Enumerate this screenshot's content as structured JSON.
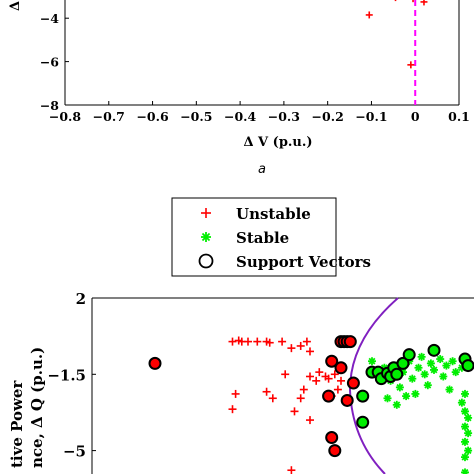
{
  "chart_data": [
    {
      "type": "scatter",
      "xlabel": "Δ V (p.u.)",
      "ylabel_fragment": "Δ",
      "xlim": [
        -0.8,
        0.1
      ],
      "ylim": [
        -8,
        -2
      ],
      "xticks": [
        -0.8,
        -0.7,
        -0.6,
        -0.5,
        -0.4,
        -0.3,
        -0.2,
        -0.1,
        0,
        0.1
      ],
      "xtick_labels": [
        "−0.8",
        "−0.7",
        "−0.6",
        "−0.5",
        "−0.4",
        "−0.3",
        "−0.2",
        "−0.1",
        "0",
        "0.1"
      ],
      "yticks": [
        -4,
        -6,
        -8
      ],
      "ytick_labels": [
        "−4",
        "−6",
        "−8"
      ],
      "series": [
        {
          "marker": "plus",
          "color": "#ff0000",
          "points": [
            [
              -0.105,
              -3.85
            ],
            [
              0.02,
              -3.25
            ],
            [
              -0.01,
              -6.15
            ],
            [
              -0.005,
              -3.1
            ],
            [
              -0.045,
              -3.05
            ]
          ]
        }
      ],
      "boundary": {
        "color": "#ff00ff",
        "style": "dashed",
        "x": 0
      },
      "caption": "a"
    },
    {
      "type": "scatter",
      "ylabel_lines": [
        "tive Power",
        "nce, Δ Q (p.u.)"
      ],
      "yticks": [
        2,
        -1.5,
        -5
      ],
      "ytick_labels": [
        "2",
        "−1.5",
        "−5"
      ],
      "legend": {
        "placement": "top-center",
        "entries": [
          {
            "label": "Unstable",
            "marker": "plus",
            "color": "#ff0000"
          },
          {
            "label": "Stable",
            "marker": "asterisk",
            "color": "#00ee00"
          },
          {
            "label": "Support Vectors",
            "marker": "circle",
            "color": "#000000"
          }
        ]
      },
      "series": [
        {
          "marker": "plus",
          "color": "#ff0000",
          "points": [
            [
              -0.55,
              0.0
            ],
            [
              -0.53,
              0.05
            ],
            [
              -0.52,
              0.0
            ],
            [
              -0.5,
              0.0
            ],
            [
              -0.47,
              0.0
            ],
            [
              -0.44,
              0.0
            ],
            [
              -0.43,
              -0.05
            ],
            [
              -0.39,
              0.0
            ],
            [
              -0.36,
              -0.3
            ],
            [
              -0.33,
              -0.2
            ],
            [
              -0.31,
              0.0
            ],
            [
              -0.3,
              -0.45
            ],
            [
              -0.38,
              -1.5
            ],
            [
              -0.42,
              -2.6
            ],
            [
              -0.44,
              -2.3
            ],
            [
              -0.54,
              -2.4
            ],
            [
              -0.55,
              -3.1
            ],
            [
              -0.35,
              -3.2
            ],
            [
              -0.33,
              -2.6
            ],
            [
              -0.32,
              -2.2
            ],
            [
              -0.3,
              -1.6
            ],
            [
              -0.28,
              -1.8
            ],
            [
              -0.27,
              -1.4
            ],
            [
              -0.25,
              -1.6
            ],
            [
              -0.24,
              -1.7
            ],
            [
              -0.22,
              -1.5
            ],
            [
              -0.2,
              -1.8
            ],
            [
              -0.21,
              -2.2
            ],
            [
              -0.23,
              -2.5
            ],
            [
              -0.3,
              -3.6
            ],
            [
              -0.36,
              -5.9
            ]
          ]
        },
        {
          "marker": "asterisk",
          "color": "#00ee00",
          "points": [
            [
              -0.1,
              -0.9
            ],
            [
              -0.08,
              -1.6
            ],
            [
              -0.06,
              -1.2
            ],
            [
              -0.04,
              -1.8
            ],
            [
              -0.02,
              -1.1
            ],
            [
              -0.01,
              -2.1
            ],
            [
              0.0,
              -1.4
            ],
            [
              0.02,
              -0.9
            ],
            [
              0.03,
              -1.7
            ],
            [
              0.04,
              -2.4
            ],
            [
              0.05,
              -1.2
            ],
            [
              0.06,
              -0.7
            ],
            [
              0.07,
              -1.5
            ],
            [
              0.08,
              -2.0
            ],
            [
              0.09,
              -1.0
            ],
            [
              0.1,
              -1.3
            ],
            [
              0.12,
              -0.8
            ],
            [
              0.13,
              -1.6
            ],
            [
              0.14,
              -1.1
            ],
            [
              0.15,
              -2.2
            ],
            [
              0.16,
              -0.9
            ],
            [
              0.17,
              -1.4
            ],
            [
              -0.05,
              -2.6
            ],
            [
              -0.02,
              -2.9
            ],
            [
              0.01,
              -2.5
            ],
            [
              0.19,
              -1.2
            ],
            [
              0.2,
              -2.4
            ],
            [
              0.2,
              -3.2
            ],
            [
              0.2,
              -3.9
            ],
            [
              0.2,
              -4.6
            ],
            [
              0.2,
              -5.3
            ],
            [
              0.2,
              -6.0
            ],
            [
              0.19,
              -2.8
            ],
            [
              0.21,
              -3.5
            ],
            [
              0.21,
              -4.2
            ],
            [
              0.21,
              -5.0
            ]
          ]
        },
        {
          "marker": "circle",
          "color": "#000000",
          "points": [
            [
              -0.8,
              -1.0
            ],
            [
              -0.2,
              0.0
            ],
            [
              -0.19,
              0.0
            ],
            [
              -0.18,
              0.0
            ],
            [
              -0.17,
              0.0
            ],
            [
              -0.23,
              -0.9
            ],
            [
              -0.24,
              -2.5
            ],
            [
              -0.2,
              -1.2
            ],
            [
              -0.18,
              -2.7
            ],
            [
              -0.23,
              -4.4
            ],
            [
              -0.22,
              -5.0
            ],
            [
              -0.16,
              -1.9
            ],
            [
              -0.1,
              -1.4
            ],
            [
              -0.08,
              -1.4
            ],
            [
              -0.07,
              -1.7
            ],
            [
              -0.05,
              -1.45
            ],
            [
              -0.04,
              -1.6
            ],
            [
              -0.03,
              -1.2
            ],
            [
              -0.02,
              -1.5
            ],
            [
              0.0,
              -1.0
            ],
            [
              0.02,
              -0.6
            ],
            [
              0.1,
              -0.4
            ],
            [
              0.2,
              -0.8
            ],
            [
              0.21,
              -1.1
            ],
            [
              -0.13,
              -2.5
            ],
            [
              -0.13,
              -3.7
            ]
          ]
        }
      ],
      "boundary": {
        "color": "#8020c0",
        "style": "solid",
        "shape": "arc"
      }
    }
  ]
}
